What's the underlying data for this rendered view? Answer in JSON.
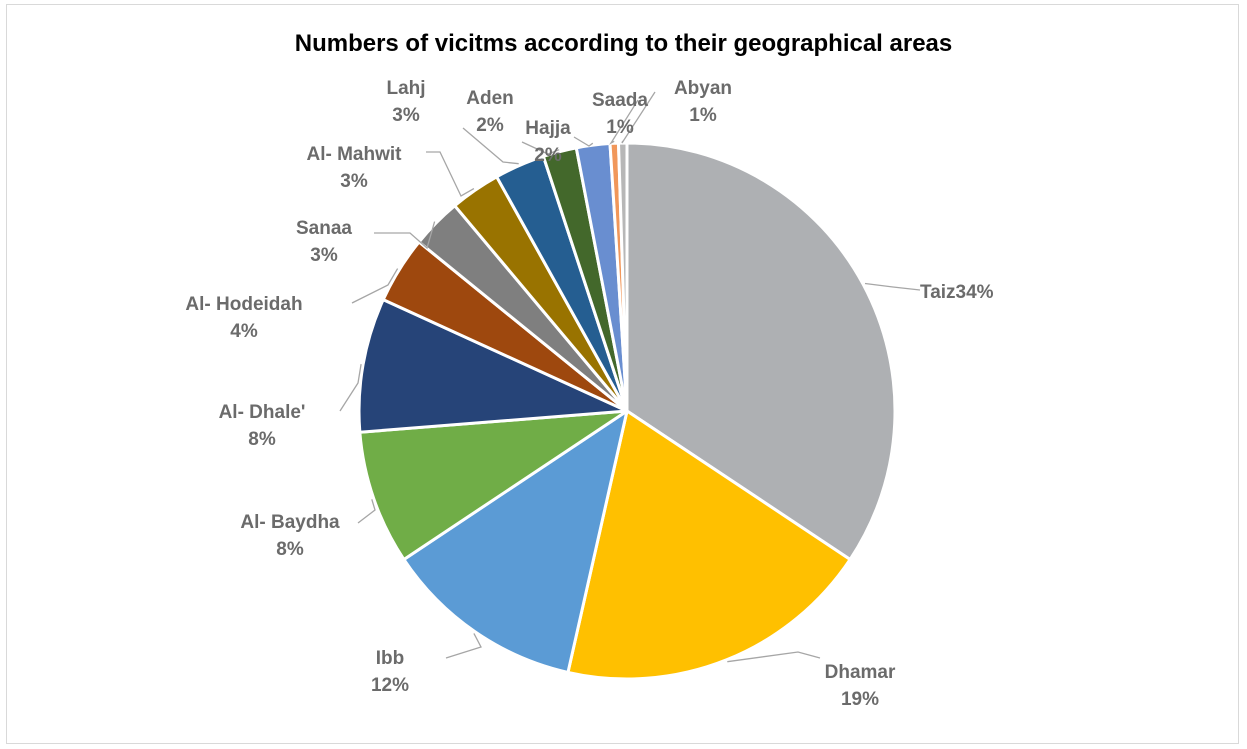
{
  "chart_data": {
    "type": "pie",
    "title": "Numbers of vicitms according to their geographical areas",
    "slices": [
      {
        "name": "Taiz",
        "value": 34,
        "label": "34%",
        "color": "#aeb0b3"
      },
      {
        "name": "Dhamar",
        "value": 19,
        "label": "19%",
        "color": "#ffc000"
      },
      {
        "name": "Ibb",
        "value": 12,
        "label": "12%",
        "color": "#5b9bd5"
      },
      {
        "name": "Al- Baydha",
        "value": 8,
        "label": "8%",
        "color": "#70ad47"
      },
      {
        "name": "Al- Dhale'",
        "value": 8,
        "label": "8%",
        "color": "#264478"
      },
      {
        "name": "Al- Hodeidah",
        "value": 4,
        "label": "4%",
        "color": "#9e480e"
      },
      {
        "name": "Sanaa",
        "value": 3,
        "label": "3%",
        "color": "#7f7f7f"
      },
      {
        "name": "Al- Mahwit",
        "value": 3,
        "label": "3%",
        "color": "#997300"
      },
      {
        "name": "Lahj",
        "value": 3,
        "label": "3%",
        "color": "#255e91"
      },
      {
        "name": "Aden",
        "value": 2,
        "label": "2%",
        "color": "#43682b"
      },
      {
        "name": "Hajja",
        "value": 2,
        "label": "2%",
        "color": "#698ed0"
      },
      {
        "name": "Saada",
        "value": 0.5,
        "label": "1%",
        "color": "#f1975a"
      },
      {
        "name": "Abyan",
        "value": 0.5,
        "label": "1%",
        "color": "#b7b7b7"
      }
    ],
    "start_angle": "12 o'clock",
    "direction": "clockwise",
    "legend": "none",
    "data_labels": "outside with leader lines"
  }
}
